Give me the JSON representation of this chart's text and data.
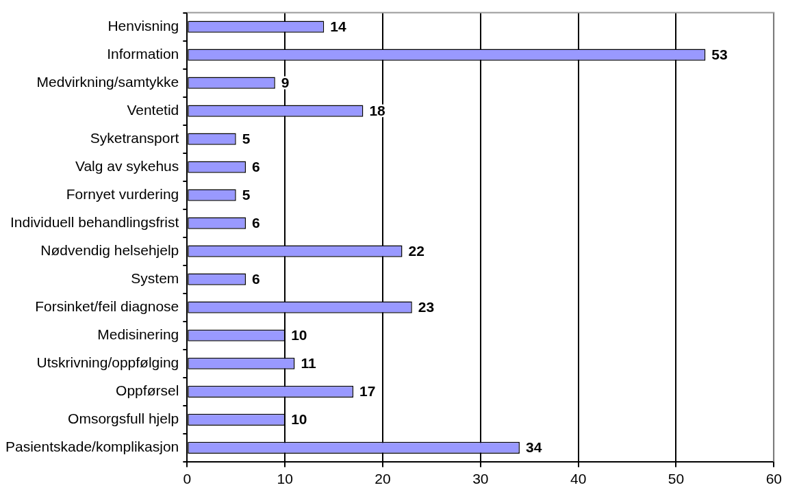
{
  "chart_data": {
    "type": "bar",
    "orientation": "horizontal",
    "categories": [
      "Henvisning",
      "Information",
      "Medvirkning/samtykke",
      "Ventetid",
      "Syketransport",
      "Valg av sykehus",
      "Fornyet vurdering",
      "Individuell behandlingsfrist",
      "Nødvendig helsehjelp",
      "System",
      "Forsinket/feil diagnose",
      "Medisinering",
      "Utskrivning/oppfølging",
      "Oppførsel",
      "Omsorgsfull hjelp",
      "Pasientskade/komplikasjon"
    ],
    "values": [
      14,
      53,
      9,
      18,
      5,
      6,
      5,
      6,
      22,
      6,
      23,
      10,
      11,
      17,
      10,
      34
    ],
    "color": "#9999ff",
    "xlim": [
      0,
      60
    ],
    "xticks": [
      0,
      10,
      20,
      30,
      40,
      50,
      60
    ],
    "grid": "x",
    "data_labels": true
  }
}
